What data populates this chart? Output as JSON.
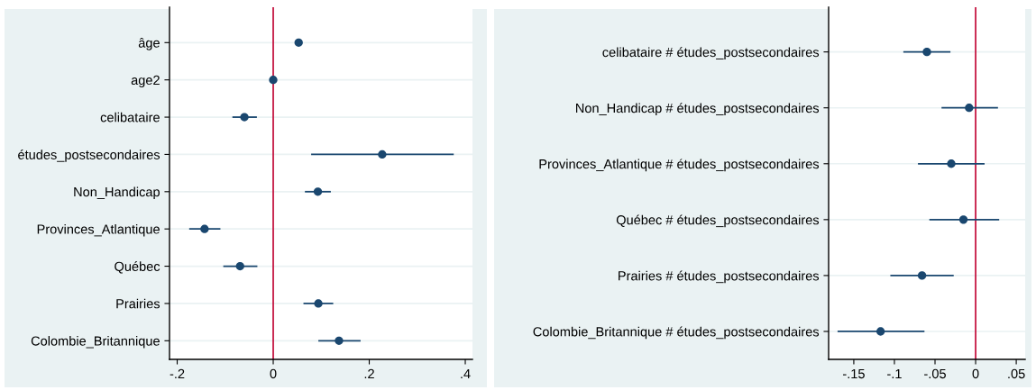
{
  "chart_data": [
    {
      "type": "scatter",
      "orientation": "horizontal",
      "categories": [
        "âge",
        "age2",
        "celibataire",
        "études_postsecondaires",
        "Non_Handicap",
        "Provinces_Atlantique",
        "Québec",
        "Prairies",
        "Colombie_Britannique"
      ],
      "series": [
        {
          "color": "#1a476f",
          "values": [
            0.053,
            0,
            -0.06,
            0.227,
            0.093,
            -0.143,
            -0.069,
            0.094,
            0.137
          ],
          "errors": [
            null,
            null,
            [
              -0.085,
              -0.034
            ],
            [
              0.079,
              0.376
            ],
            [
              0.066,
              0.12
            ],
            [
              -0.175,
              -0.11
            ],
            [
              -0.104,
              -0.033
            ],
            [
              0.063,
              0.125
            ],
            [
              0.094,
              0.182
            ]
          ]
        }
      ],
      "xlim": [
        -0.216,
        0.415
      ],
      "xticks": [
        {
          "value": -0.2,
          "label": "-.2"
        },
        0,
        {
          "value": 0.2,
          "label": ".2"
        },
        {
          "value": 0.4,
          "label": ".4"
        }
      ],
      "ref_lines": [
        {
          "axis": "x",
          "value": 0,
          "color": "#c10534"
        }
      ],
      "grid": "y",
      "marker": "circle",
      "legend": false
    },
    {
      "type": "scatter",
      "orientation": "horizontal",
      "categories": [
        "celibataire # études_postsecondaires",
        "Non_Handicap # études_postsecondaires",
        "Provinces_Atlantique # études_postsecondaires",
        "Québec # études_postsecondaires",
        "Prairies # études_postsecondaires",
        "Colombie_Britannique # études_postsecondaires"
      ],
      "series": [
        {
          "color": "#1a476f",
          "values": [
            -0.06,
            -0.008,
            -0.03,
            -0.015,
            -0.066,
            -0.117
          ],
          "errors": [
            [
              -0.089,
              -0.031
            ],
            [
              -0.042,
              0.0275
            ],
            [
              -0.071,
              0.011
            ],
            [
              -0.057,
              0.029
            ],
            [
              -0.105,
              -0.027
            ],
            [
              -0.17,
              -0.063
            ]
          ]
        }
      ],
      "xlim": [
        -0.181,
        0.061
      ],
      "xticks": [
        {
          "value": -0.15,
          "label": "-.15"
        },
        {
          "value": -0.1,
          "label": "-.1"
        },
        {
          "value": -0.05,
          "label": "-.05"
        },
        0,
        {
          "value": 0.05,
          "label": ".05"
        }
      ],
      "ref_lines": [
        {
          "axis": "x",
          "value": 0,
          "color": "#c10534"
        }
      ],
      "grid": "y",
      "marker": "circle",
      "legend": false
    }
  ]
}
